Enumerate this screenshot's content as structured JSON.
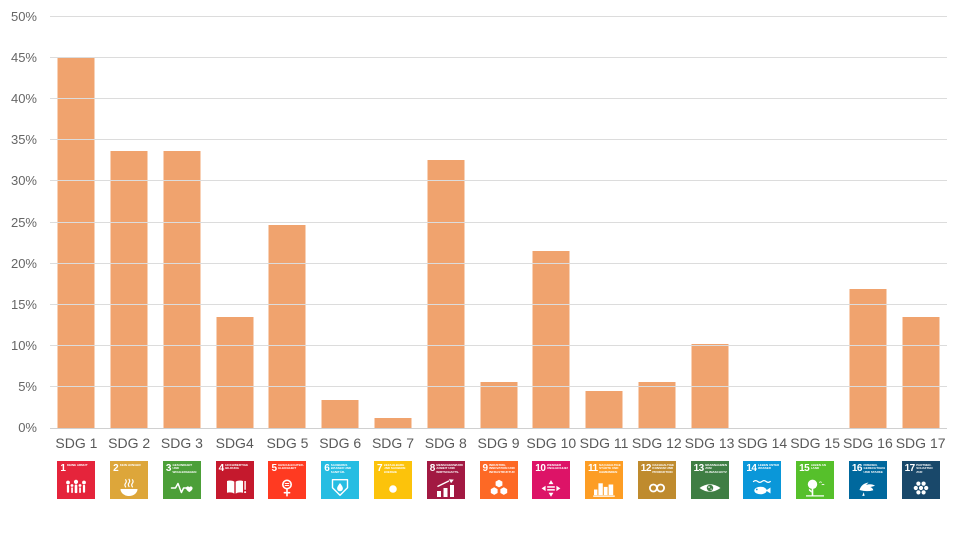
{
  "chart_data": {
    "type": "bar",
    "title": "",
    "xlabel": "",
    "ylabel": "",
    "categories": [
      "SDG 1",
      "SDG 2",
      "SDG 3",
      "SDG4",
      "SDG 5",
      "SDG 6",
      "SDG 7",
      "SDG 8",
      "SDG 9",
      "SDG 10",
      "SDG 11",
      "SDG 12",
      "SDG 13",
      "SDG 14",
      "SDG 15",
      "SDG 16",
      "SDG 17"
    ],
    "values": [
      45,
      33.7,
      33.7,
      13.5,
      24.7,
      3.4,
      1.2,
      32.6,
      5.6,
      21.5,
      4.5,
      5.6,
      10.2,
      0,
      0,
      16.9,
      13.5
    ],
    "ylim": [
      0,
      50
    ],
    "ytick_step": 5,
    "ytick_labels": [
      "0%",
      "5%",
      "10%",
      "15%",
      "20%",
      "25%",
      "30%",
      "35%",
      "40%",
      "45%",
      "50%"
    ],
    "grid": true,
    "legend_position": "none",
    "bar_color": "#F0A36E",
    "gridline_color": "#DCDCDC",
    "tick_label_color": "#666666",
    "category_label_color": "#595959"
  },
  "sdg_icons": [
    {
      "number": "1",
      "title": "KEINE ARMUT",
      "color": "#E5243B",
      "glyph": "people-icon"
    },
    {
      "number": "2",
      "title": "KEIN HUNGER",
      "color": "#DDA63A",
      "glyph": "bowl-icon"
    },
    {
      "number": "3",
      "title": "GESUNDHEIT UND WOHLERGEHEN",
      "color": "#4C9F38",
      "glyph": "heartbeat-icon"
    },
    {
      "number": "4",
      "title": "HOCHWERTIGE BILDUNG",
      "color": "#C5192D",
      "glyph": "book-icon"
    },
    {
      "number": "5",
      "title": "GESCHLECHTER-GLEICHHEIT",
      "color": "#FF3A21",
      "glyph": "gender-equality-icon"
    },
    {
      "number": "6",
      "title": "SAUBERES WASSER UND SANITÄR-EINRICHTUNGEN",
      "color": "#26BDE2",
      "glyph": "water-drop-icon"
    },
    {
      "number": "7",
      "title": "BEZAHLBARE UND SAUBERE ENERGIE",
      "color": "#FCC30B",
      "glyph": "sun-icon"
    },
    {
      "number": "8",
      "title": "MENSCHENWÜRDIGE ARBEIT UND WIRTSCHAFTS-WACHSTUM",
      "color": "#A21942",
      "glyph": "growth-chart-icon"
    },
    {
      "number": "9",
      "title": "INDUSTRIE, INNOVATION UND INFRASTRUKTUR",
      "color": "#FD6925",
      "glyph": "cubes-icon"
    },
    {
      "number": "10",
      "title": "WENIGER UNGLEICHHEITEN",
      "color": "#DD1367",
      "glyph": "equality-arrows-icon"
    },
    {
      "number": "11",
      "title": "NACHHALTIGE STÄDTE UND GEMEINDEN",
      "color": "#FD9D24",
      "glyph": "city-skyline-icon"
    },
    {
      "number": "12",
      "title": "NACHHALTIGE/R KONSUM UND PRODUKTION",
      "color": "#BF8B2E",
      "glyph": "infinity-icon"
    },
    {
      "number": "13",
      "title": "MASSNAHMEN ZUM KLIMASCHUTZ",
      "color": "#3F7E44",
      "glyph": "eye-globe-icon"
    },
    {
      "number": "14",
      "title": "LEBEN UNTER WASSER",
      "color": "#0A97D9",
      "glyph": "fish-icon"
    },
    {
      "number": "15",
      "title": "LEBEN AN LAND",
      "color": "#56C02B",
      "glyph": "tree-icon"
    },
    {
      "number": "16",
      "title": "FRIEDEN, GERECHTIGKEIT UND STARKE INSTITUTIONEN",
      "color": "#00689D",
      "glyph": "dove-icon"
    },
    {
      "number": "17",
      "title": "PARTNER-SCHAFTEN ZUR ERREICHUNG DER ZIELE",
      "color": "#19486A",
      "glyph": "rings-icon"
    }
  ]
}
